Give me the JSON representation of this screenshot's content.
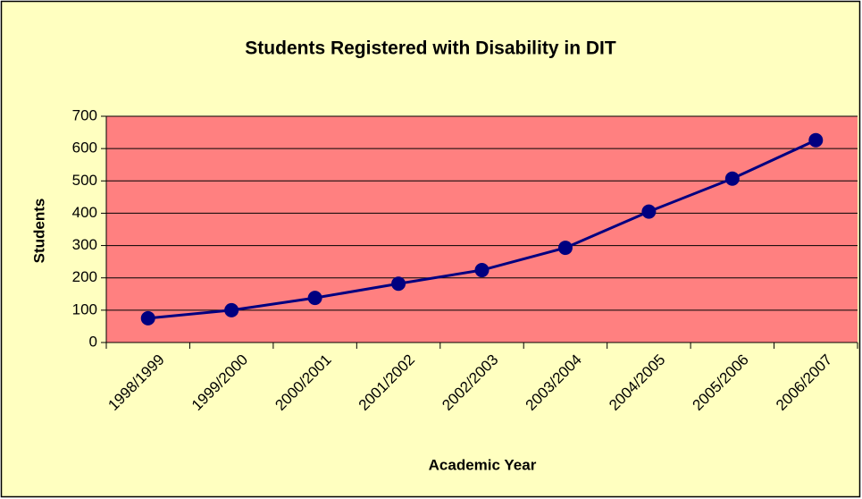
{
  "chart_data": {
    "type": "line",
    "title": "Students Registered with Disability in DIT",
    "x_label": "Academic Year",
    "y_label": "Students",
    "categories": [
      "1998/1999",
      "1999/2000",
      "2000/2001",
      "2001/2002",
      "2002/2003",
      "2003/2004",
      "2004/2005",
      "2005/2006",
      "2006/2007"
    ],
    "series": [
      {
        "name": "Students",
        "color": "#000080",
        "values": [
          75,
          100,
          138,
          182,
          224,
          293,
          405,
          507,
          626
        ]
      }
    ],
    "ylim": [
      0,
      700
    ],
    "yticks": [
      0,
      100,
      200,
      300,
      400,
      500,
      600,
      700
    ],
    "grid": true
  }
}
